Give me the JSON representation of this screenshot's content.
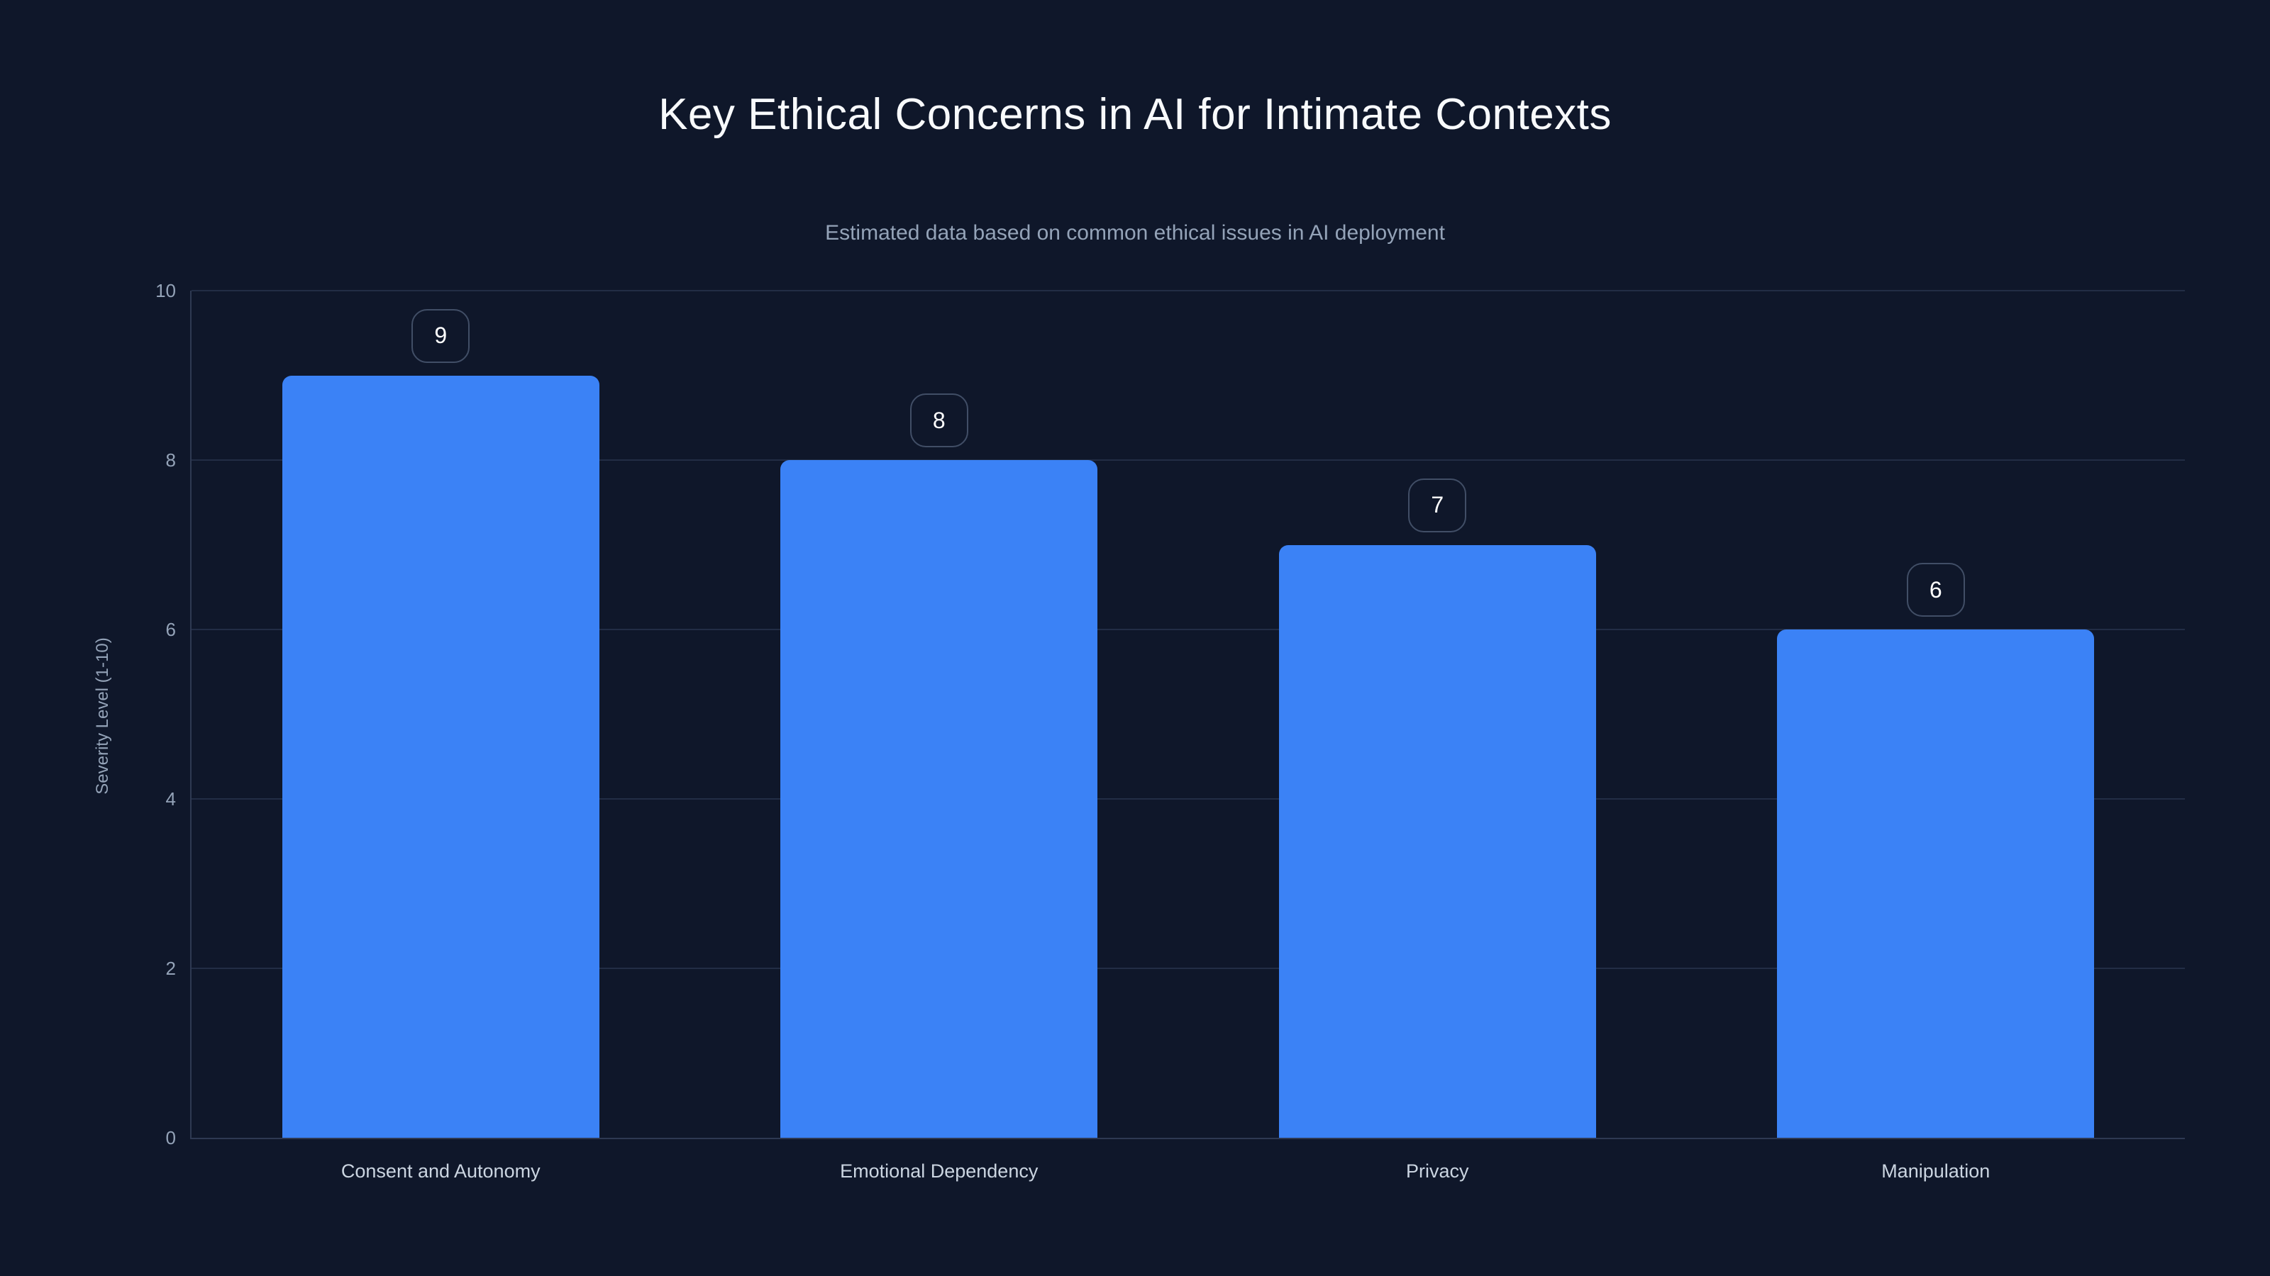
{
  "chart_data": {
    "type": "bar",
    "title": "Key Ethical Concerns in AI for Intimate Contexts",
    "subtitle": "Estimated data based on common ethical issues in AI deployment",
    "categories": [
      "Consent and Autonomy",
      "Emotional Dependency",
      "Privacy",
      "Manipulation"
    ],
    "values": [
      9,
      8,
      7,
      6
    ],
    "value_badges": [
      "9",
      "8",
      "7",
      "6"
    ],
    "xlabel": "",
    "ylabel": "Severity Level (1-10)",
    "ylim": [
      0,
      10
    ],
    "yticks": [
      0,
      2,
      4,
      6,
      8,
      10
    ],
    "grid": true,
    "legend_position": "none",
    "bar_color": "#3b82f6"
  },
  "theme": {
    "background": "#0f172a",
    "title_color": "#f8fafc",
    "subtitle_color": "#94a3b8",
    "tick_color": "#94a3b8",
    "category_color": "#cbd5e1",
    "grid_color": "#222d45",
    "axis_color": "#2e3952",
    "badge_border_color": "#414e66",
    "badge_text_color": "#ffffff"
  }
}
